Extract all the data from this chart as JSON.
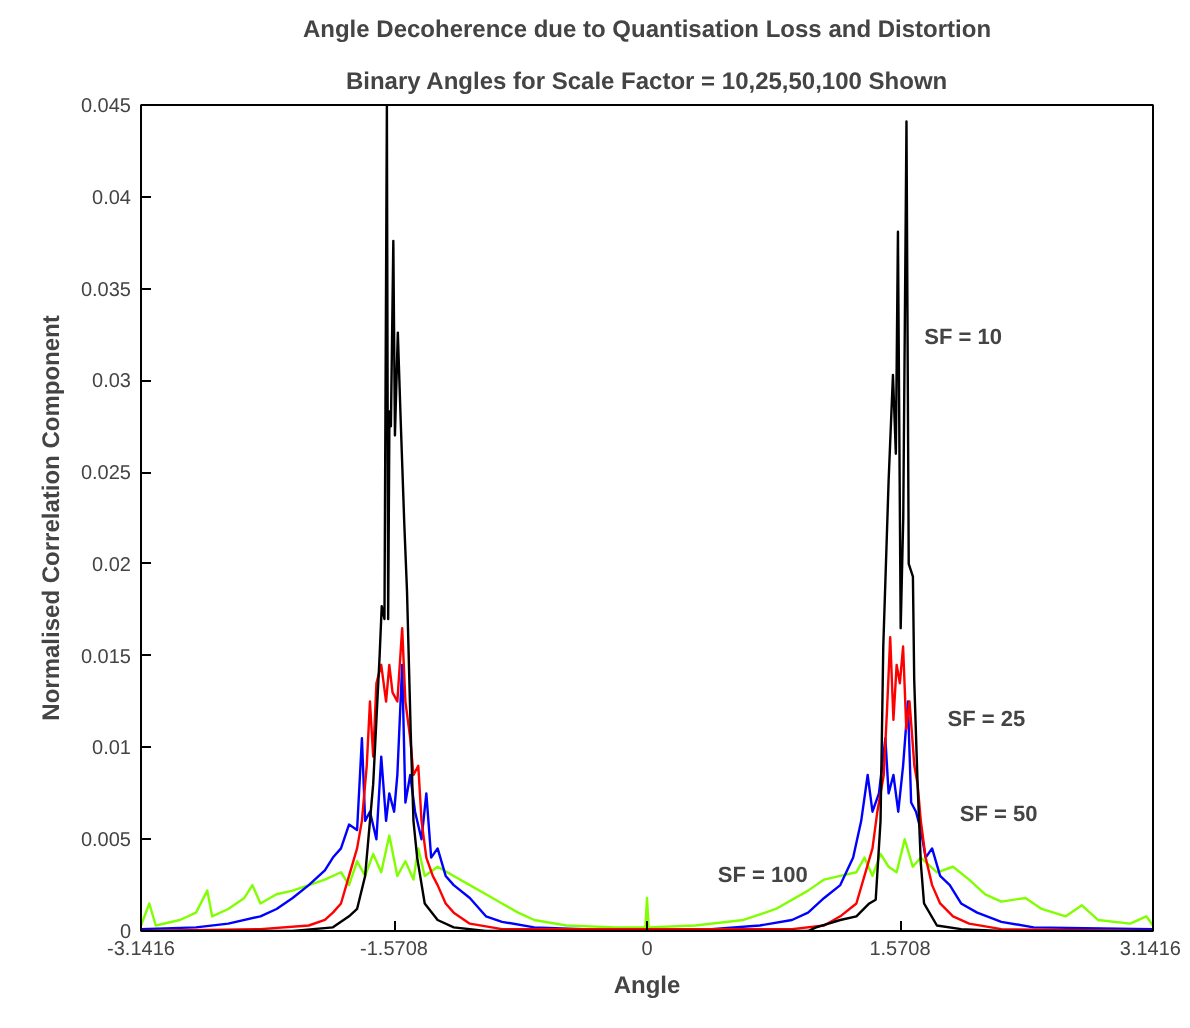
{
  "chart_data": {
    "type": "line",
    "title": "Angle Decoherence due to Quantisation Loss and Distortion",
    "subtitle": "Binary Angles for Scale Factor = 10,25,50,100 Shown",
    "xlabel": "Angle",
    "ylabel": "Normalised Correlation Component",
    "xlim": [
      -3.1416,
      3.1416
    ],
    "ylim": [
      0,
      0.045
    ],
    "xticks": [
      -3.1416,
      -1.5708,
      0,
      1.5708,
      3.1416
    ],
    "yticks": [
      0,
      0.005,
      0.01,
      0.015,
      0.02,
      0.025,
      0.03,
      0.035,
      0.04,
      0.045
    ],
    "grid": false,
    "marker": "none",
    "line_style": "solid",
    "series": [
      {
        "color": "#80ff00",
        "x": [
          -3.1416,
          -3.09,
          -3.05,
          -2.9,
          -2.8,
          -2.73,
          -2.7,
          -2.6,
          -2.5,
          -2.45,
          -2.4,
          -2.3,
          -2.2,
          -2.1,
          -2.0,
          -1.9,
          -1.85,
          -1.8,
          -1.75,
          -1.7,
          -1.65,
          -1.6,
          -1.55,
          -1.5,
          -1.45,
          -1.42,
          -1.38,
          -1.3,
          -1.2,
          -1.1,
          -1.0,
          -0.9,
          -0.8,
          -0.7,
          -0.5,
          -0.2,
          -0.01,
          0.0,
          0.01,
          0.3,
          0.6,
          0.8,
          1.0,
          1.1,
          1.2,
          1.3,
          1.35,
          1.4,
          1.45,
          1.5,
          1.55,
          1.6,
          1.65,
          1.7,
          1.8,
          1.9,
          2.0,
          2.1,
          2.2,
          2.35,
          2.45,
          2.6,
          2.7,
          2.8,
          3.0,
          3.1,
          3.1416
        ],
        "values": [
          0.0003,
          0.0015,
          0.0003,
          0.0006,
          0.001,
          0.0022,
          0.0008,
          0.0012,
          0.0018,
          0.0025,
          0.0015,
          0.002,
          0.0022,
          0.0025,
          0.0028,
          0.0032,
          0.0025,
          0.0038,
          0.003,
          0.0042,
          0.0032,
          0.0052,
          0.003,
          0.0038,
          0.0028,
          0.0045,
          0.003,
          0.0035,
          0.003,
          0.0025,
          0.002,
          0.0015,
          0.001,
          0.0006,
          0.0003,
          0.0002,
          0.0002,
          0.0018,
          0.0002,
          0.0003,
          0.0006,
          0.0012,
          0.0022,
          0.0028,
          0.003,
          0.0032,
          0.004,
          0.003,
          0.0042,
          0.0035,
          0.0032,
          0.005,
          0.0035,
          0.004,
          0.0032,
          0.0035,
          0.0028,
          0.002,
          0.0016,
          0.0018,
          0.0012,
          0.0008,
          0.0014,
          0.0006,
          0.0004,
          0.0008,
          0.0003
        ]
      },
      {
        "color": "#0000ff",
        "x": [
          -3.1416,
          -2.8,
          -2.6,
          -2.4,
          -2.3,
          -2.2,
          -2.1,
          -2.0,
          -1.95,
          -1.9,
          -1.85,
          -1.8,
          -1.77,
          -1.75,
          -1.72,
          -1.68,
          -1.65,
          -1.62,
          -1.6,
          -1.57,
          -1.55,
          -1.52,
          -1.5,
          -1.47,
          -1.44,
          -1.4,
          -1.37,
          -1.34,
          -1.3,
          -1.25,
          -1.2,
          -1.1,
          -1.0,
          -0.9,
          -0.7,
          -0.4,
          0.4,
          0.7,
          0.9,
          1.0,
          1.1,
          1.2,
          1.28,
          1.33,
          1.37,
          1.4,
          1.44,
          1.48,
          1.5,
          1.53,
          1.56,
          1.59,
          1.62,
          1.64,
          1.67,
          1.7,
          1.73,
          1.77,
          1.82,
          1.88,
          1.95,
          2.05,
          2.2,
          2.4,
          3.1416
        ],
        "values": [
          0.0001,
          0.0002,
          0.0004,
          0.0008,
          0.0012,
          0.0018,
          0.0025,
          0.0033,
          0.004,
          0.0045,
          0.0058,
          0.0055,
          0.0105,
          0.006,
          0.0065,
          0.005,
          0.0095,
          0.006,
          0.0075,
          0.0065,
          0.0085,
          0.0145,
          0.007,
          0.0085,
          0.0065,
          0.005,
          0.0075,
          0.004,
          0.0045,
          0.003,
          0.0025,
          0.0018,
          0.0008,
          0.0005,
          0.0002,
          0.0001,
          0.0001,
          0.0003,
          0.0006,
          0.001,
          0.0018,
          0.0025,
          0.004,
          0.006,
          0.0085,
          0.0065,
          0.0075,
          0.0105,
          0.0075,
          0.0085,
          0.0065,
          0.009,
          0.0125,
          0.007,
          0.0065,
          0.0055,
          0.004,
          0.0045,
          0.003,
          0.0025,
          0.0015,
          0.001,
          0.0005,
          0.0002,
          0.0001
        ]
      },
      {
        "color": "#ff0000",
        "x": [
          -3.1416,
          -2.4,
          -2.1,
          -2.0,
          -1.95,
          -1.9,
          -1.85,
          -1.8,
          -1.77,
          -1.74,
          -1.72,
          -1.7,
          -1.68,
          -1.65,
          -1.62,
          -1.6,
          -1.58,
          -1.55,
          -1.52,
          -1.5,
          -1.47,
          -1.45,
          -1.42,
          -1.4,
          -1.37,
          -1.33,
          -1.3,
          -1.25,
          -1.2,
          -1.1,
          -0.9,
          0.9,
          1.1,
          1.2,
          1.3,
          1.35,
          1.4,
          1.43,
          1.47,
          1.49,
          1.51,
          1.53,
          1.55,
          1.57,
          1.59,
          1.61,
          1.63,
          1.66,
          1.68,
          1.7,
          1.73,
          1.77,
          1.82,
          1.9,
          2.0,
          2.2,
          3.1416
        ],
        "values": [
          0,
          0.0001,
          0.0003,
          0.0006,
          0.001,
          0.0015,
          0.003,
          0.0045,
          0.006,
          0.009,
          0.0125,
          0.0095,
          0.0135,
          0.0145,
          0.0125,
          0.0145,
          0.013,
          0.0125,
          0.0165,
          0.0125,
          0.0105,
          0.0085,
          0.009,
          0.006,
          0.004,
          0.003,
          0.0025,
          0.0015,
          0.001,
          0.0004,
          0.0001,
          0.0001,
          0.0003,
          0.0008,
          0.0015,
          0.003,
          0.0045,
          0.0065,
          0.0085,
          0.012,
          0.016,
          0.0115,
          0.0145,
          0.0135,
          0.0155,
          0.011,
          0.0125,
          0.009,
          0.008,
          0.006,
          0.004,
          0.0025,
          0.0015,
          0.0008,
          0.0004,
          0.0001,
          0
        ]
      },
      {
        "color": "#000000",
        "x": [
          -3.1416,
          -2.2,
          -1.95,
          -1.85,
          -1.8,
          -1.75,
          -1.7,
          -1.66,
          -1.647,
          -1.63,
          -1.615,
          -1.607,
          -1.599,
          -1.59,
          -1.575,
          -1.565,
          -1.547,
          -1.53,
          -1.507,
          -1.49,
          -1.467,
          -1.45,
          -1.427,
          -1.38,
          -1.3,
          -1.2,
          -1.0,
          1.0,
          1.05,
          1.2,
          1.3,
          1.38,
          1.42,
          1.45,
          1.467,
          1.5,
          1.527,
          1.545,
          1.558,
          1.575,
          1.591,
          1.611,
          1.625,
          1.651,
          1.659,
          1.68,
          1.7,
          1.72,
          1.8,
          1.95,
          2.2,
          3.1416
        ],
        "values": [
          0,
          0,
          0.0002,
          0.0008,
          0.0012,
          0.003,
          0.008,
          0.015,
          0.0177,
          0.017,
          0.045,
          0.017,
          0.0283,
          0.0275,
          0.0376,
          0.027,
          0.0326,
          0.028,
          0.0222,
          0.0185,
          0.0108,
          0.006,
          0.004,
          0.0015,
          0.0006,
          0.0002,
          0,
          0,
          0.0002,
          0.0006,
          0.0008,
          0.0015,
          0.0017,
          0.006,
          0.0155,
          0.0245,
          0.0303,
          0.026,
          0.0381,
          0.0165,
          0.0225,
          0.0441,
          0.02,
          0.0193,
          0.0137,
          0.008,
          0.0037,
          0.0015,
          0.0003,
          0.0001,
          0,
          0
        ]
      }
    ],
    "annotations": [
      "SF = 10",
      "SF = 25",
      "SF = 50",
      "SF = 100"
    ]
  }
}
